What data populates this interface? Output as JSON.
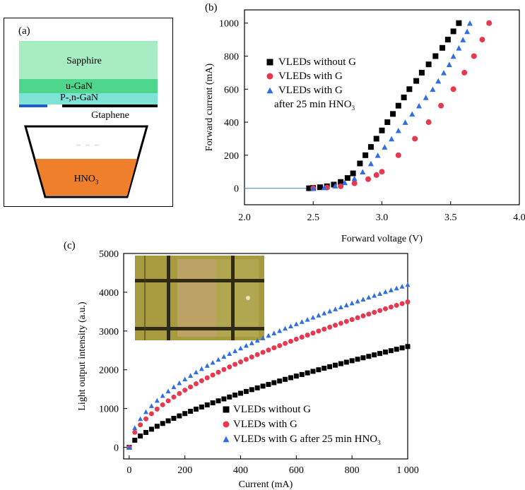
{
  "panel_a": {
    "label": "(a)",
    "layers": {
      "sapphire": "Sapphire",
      "ugan": "u-GaN",
      "pngan": "P-,n-GaN",
      "graphene": "Gtaphene"
    },
    "beaker_label": "HNO",
    "beaker_sub": "3",
    "colors": {
      "sapphire": "#a8ecc4",
      "ugan": "#4dd68c",
      "pngan": "#7fe3d8",
      "graphene_line": "#000000",
      "graphene_blue": "#1f5fbf",
      "acid": "#f07f2b"
    }
  },
  "chart_data": [
    {
      "panel": "(b)",
      "type": "scatter",
      "xlabel": "Forward voltage (V)",
      "ylabel": "Forward current (mA)",
      "xlim": [
        2.0,
        4.0
      ],
      "ylim": [
        -100,
        1080
      ],
      "xticks": [
        "2.0",
        "2.5",
        "3.0",
        "3.5",
        "4.0"
      ],
      "yticks": [
        "0",
        "200",
        "400",
        "600",
        "800",
        "1000"
      ],
      "xtick_values": [
        2.0,
        2.5,
        3.0,
        3.5,
        4.0
      ],
      "ytick_values": [
        0,
        200,
        400,
        600,
        800,
        1000
      ],
      "legend_position": "center-left",
      "legend_note": "after 25 min HNO",
      "legend_note_sub": "3",
      "series": [
        {
          "name": "VLEDs without G",
          "marker": "square",
          "color": "#000000",
          "points": [
            [
              2.47,
              0
            ],
            [
              2.5,
              2
            ],
            [
              2.55,
              6
            ],
            [
              2.6,
              12
            ],
            [
              2.65,
              22
            ],
            [
              2.7,
              38
            ],
            [
              2.75,
              62
            ],
            [
              2.79,
              90
            ],
            [
              2.84,
              150
            ],
            [
              2.88,
              200
            ],
            [
              2.92,
              250
            ],
            [
              2.96,
              300
            ],
            [
              3.0,
              350
            ],
            [
              3.04,
              400
            ],
            [
              3.08,
              450
            ],
            [
              3.12,
              500
            ],
            [
              3.16,
              550
            ],
            [
              3.2,
              600
            ],
            [
              3.25,
              650
            ],
            [
              3.29,
              700
            ],
            [
              3.34,
              750
            ],
            [
              3.39,
              800
            ],
            [
              3.44,
              850
            ],
            [
              3.48,
              900
            ],
            [
              3.52,
              950
            ],
            [
              3.56,
              1000
            ]
          ]
        },
        {
          "name": "VLEDs with G",
          "marker": "circle",
          "color": "#e8384f",
          "points": [
            [
              2.5,
              0
            ],
            [
              2.6,
              4
            ],
            [
              2.7,
              12
            ],
            [
              2.8,
              30
            ],
            [
              2.9,
              55
            ],
            [
              2.96,
              80
            ],
            [
              3.0,
              100
            ],
            [
              3.12,
              200
            ],
            [
              3.24,
              300
            ],
            [
              3.34,
              400
            ],
            [
              3.43,
              500
            ],
            [
              3.52,
              600
            ],
            [
              3.6,
              700
            ],
            [
              3.67,
              800
            ],
            [
              3.73,
              900
            ],
            [
              3.78,
              1000
            ]
          ]
        },
        {
          "name": "VLEDs with G",
          "marker": "triangle",
          "color": "#2f6fe4",
          "points": [
            [
              2.5,
              0
            ],
            [
              2.58,
              5
            ],
            [
              2.66,
              15
            ],
            [
              2.73,
              35
            ],
            [
              2.8,
              60
            ],
            [
              2.86,
              100
            ],
            [
              2.92,
              150
            ],
            [
              2.97,
              200
            ],
            [
              3.02,
              250
            ],
            [
              3.07,
              300
            ],
            [
              3.12,
              350
            ],
            [
              3.17,
              400
            ],
            [
              3.22,
              450
            ],
            [
              3.27,
              500
            ],
            [
              3.32,
              550
            ],
            [
              3.37,
              600
            ],
            [
              3.41,
              650
            ],
            [
              3.45,
              700
            ],
            [
              3.49,
              750
            ],
            [
              3.52,
              800
            ],
            [
              3.56,
              850
            ],
            [
              3.59,
              900
            ],
            [
              3.62,
              950
            ],
            [
              3.64,
              1000
            ]
          ]
        }
      ]
    },
    {
      "panel": "(c)",
      "type": "scatter",
      "xlabel": "Current (mA)",
      "ylabel": "Light output intensity (a.u.)",
      "xlim": [
        -20,
        1000
      ],
      "ylim": [
        -300,
        5000
      ],
      "xticks": [
        "0",
        "200",
        "400",
        "600",
        "800",
        "1 000"
      ],
      "yticks": [
        "0",
        "1000",
        "2000",
        "3000",
        "4000",
        "5000"
      ],
      "xtick_values": [
        0,
        200,
        400,
        600,
        800,
        1000
      ],
      "ytick_values": [
        0,
        1000,
        2000,
        3000,
        4000,
        5000
      ],
      "legend_position": "bottom-right",
      "legend_sub": "3",
      "series": [
        {
          "name": "VLEDs without G",
          "marker": "square",
          "color": "#000000",
          "max_value": 2600,
          "exponent": 0.68
        },
        {
          "name": "VLEDs with G",
          "marker": "circle",
          "color": "#e8384f",
          "max_value": 3750,
          "exponent": 0.58
        },
        {
          "name": "VLEDs with G after 25 min HNO",
          "marker": "triangle",
          "color": "#2f6fe4",
          "max_value": 4200,
          "exponent": 0.54
        }
      ]
    }
  ]
}
